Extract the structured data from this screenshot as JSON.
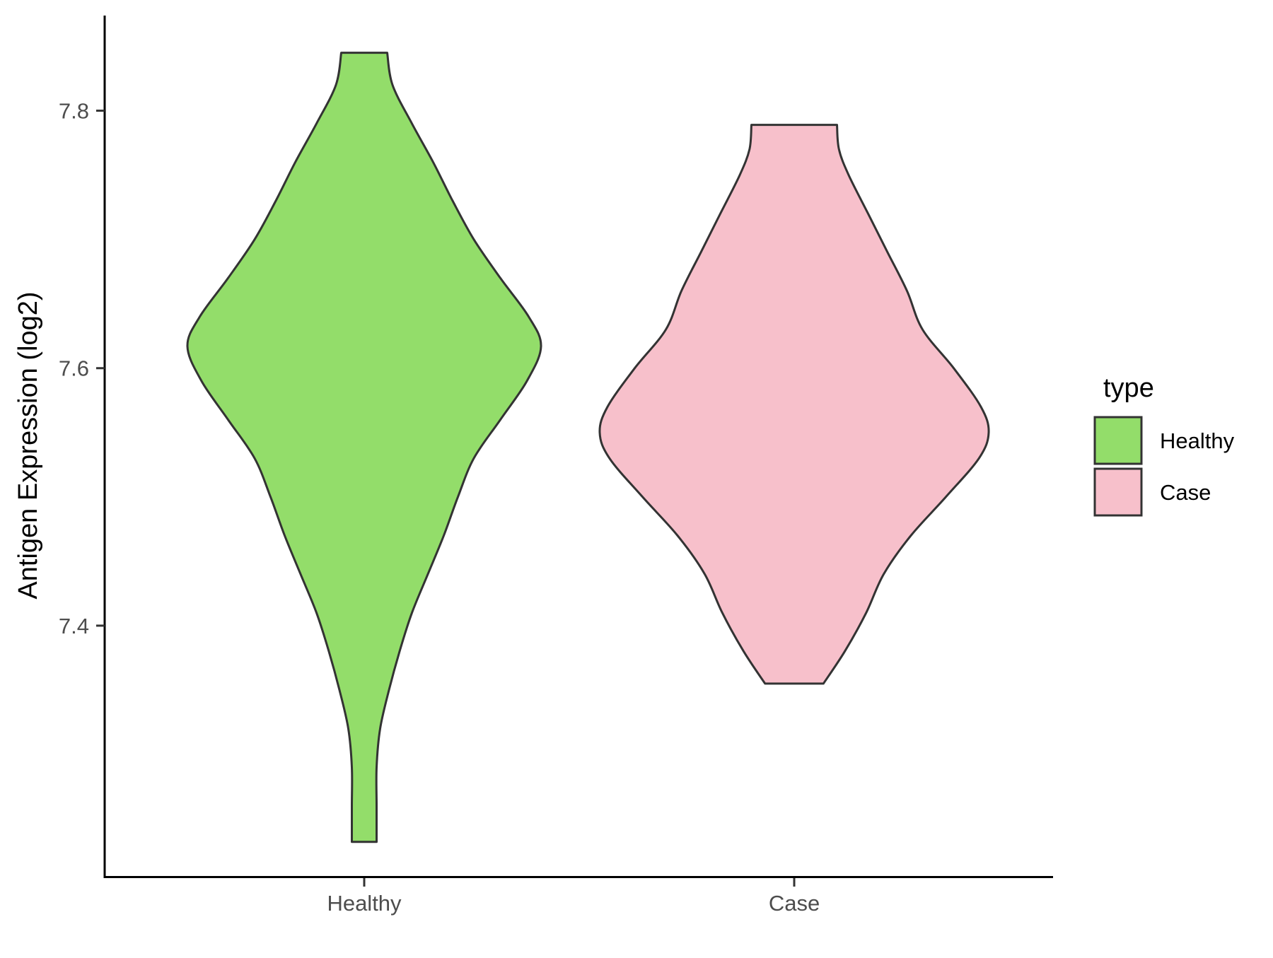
{
  "chart_data": {
    "type": "violin",
    "ylabel": "Antigen Expression (log2)",
    "xlabel": "",
    "categories": [
      "Healthy",
      "Case"
    ],
    "y_ticks": [
      "7.4",
      "7.6",
      "7.8"
    ],
    "y_tick_values": [
      7.4,
      7.6,
      7.8
    ],
    "ylim": [
      7.205,
      7.875
    ],
    "grid": false,
    "legend": {
      "title": "type",
      "position": "right",
      "entries": [
        {
          "label": "Healthy",
          "color": "#93dd6a"
        },
        {
          "label": "Case",
          "color": "#f7c0cb"
        }
      ]
    },
    "series": [
      {
        "category": "Healthy",
        "color": "#93dd6a",
        "y_min": 7.232,
        "y_max": 7.845,
        "density_profile": [
          {
            "y": 7.232,
            "w": 0.07
          },
          {
            "y": 7.26,
            "w": 0.07
          },
          {
            "y": 7.29,
            "w": 0.07
          },
          {
            "y": 7.32,
            "w": 0.09
          },
          {
            "y": 7.35,
            "w": 0.14
          },
          {
            "y": 7.38,
            "w": 0.2
          },
          {
            "y": 7.41,
            "w": 0.27
          },
          {
            "y": 7.44,
            "w": 0.36
          },
          {
            "y": 7.47,
            "w": 0.45
          },
          {
            "y": 7.5,
            "w": 0.53
          },
          {
            "y": 7.53,
            "w": 0.62
          },
          {
            "y": 7.56,
            "w": 0.77
          },
          {
            "y": 7.59,
            "w": 0.92
          },
          {
            "y": 7.617,
            "w": 1.0
          },
          {
            "y": 7.64,
            "w": 0.93
          },
          {
            "y": 7.67,
            "w": 0.77
          },
          {
            "y": 7.7,
            "w": 0.62
          },
          {
            "y": 7.73,
            "w": 0.5
          },
          {
            "y": 7.76,
            "w": 0.39
          },
          {
            "y": 7.79,
            "w": 0.27
          },
          {
            "y": 7.82,
            "w": 0.16
          },
          {
            "y": 7.845,
            "w": 0.13
          }
        ]
      },
      {
        "category": "Case",
        "color": "#f7c0cb",
        "y_min": 7.355,
        "y_max": 7.789,
        "density_profile": [
          {
            "y": 7.355,
            "w": 0.15
          },
          {
            "y": 7.38,
            "w": 0.26
          },
          {
            "y": 7.41,
            "w": 0.37
          },
          {
            "y": 7.44,
            "w": 0.46
          },
          {
            "y": 7.47,
            "w": 0.6
          },
          {
            "y": 7.5,
            "w": 0.78
          },
          {
            "y": 7.53,
            "w": 0.95
          },
          {
            "y": 7.55,
            "w": 1.0
          },
          {
            "y": 7.57,
            "w": 0.96
          },
          {
            "y": 7.6,
            "w": 0.82
          },
          {
            "y": 7.63,
            "w": 0.66
          },
          {
            "y": 7.66,
            "w": 0.58
          },
          {
            "y": 7.69,
            "w": 0.48
          },
          {
            "y": 7.72,
            "w": 0.38
          },
          {
            "y": 7.75,
            "w": 0.28
          },
          {
            "y": 7.77,
            "w": 0.23
          },
          {
            "y": 7.789,
            "w": 0.22
          }
        ]
      }
    ]
  }
}
